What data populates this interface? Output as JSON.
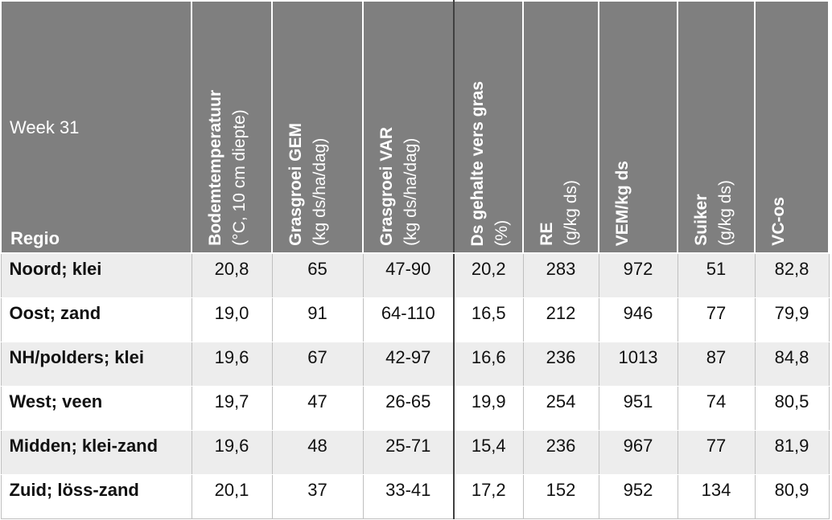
{
  "table": {
    "week_label": "Week 31",
    "region_header": "Regio",
    "columns": [
      {
        "bold": "Bodemtemperatuur",
        "unit": "(°C, 10 cm diepte)"
      },
      {
        "bold": "Grasgroei GEM",
        "unit": "(kg ds/ha/dag)"
      },
      {
        "bold": "Grasgroei VAR",
        "unit": "(kg ds/ha/dag)"
      },
      {
        "bold": "Ds gehalte vers gras",
        "unit": "(%)"
      },
      {
        "bold": "RE",
        "unit": "(g/kg ds)"
      },
      {
        "bold": "VEM/kg ds",
        "unit": ""
      },
      {
        "bold": "Suiker",
        "unit": "(g/kg ds)"
      },
      {
        "bold": "VC-os",
        "unit": ""
      }
    ],
    "rows": [
      {
        "region": "Noord; klei",
        "values": [
          "20,8",
          "65",
          "47-90",
          "20,2",
          "283",
          "972",
          "51",
          "82,8"
        ]
      },
      {
        "region": "Oost; zand",
        "values": [
          "19,0",
          "91",
          "64-110",
          "16,5",
          "212",
          "946",
          "77",
          "79,9"
        ]
      },
      {
        "region": "NH/polders; klei",
        "values": [
          "19,6",
          "67",
          "42-97",
          "16,6",
          "236",
          "1013",
          "87",
          "84,8"
        ]
      },
      {
        "region": "West; veen",
        "values": [
          "19,7",
          "47",
          "26-65",
          "19,9",
          "254",
          "951",
          "74",
          "80,5"
        ]
      },
      {
        "region": "Midden; klei-zand",
        "values": [
          "19,6",
          "48",
          "25-71",
          "15,4",
          "236",
          "967",
          "77",
          "81,9"
        ]
      },
      {
        "region": "Zuid; löss-zand",
        "values": [
          "20,1",
          "37",
          "33-41",
          "17,2",
          "152",
          "952",
          "134",
          "80,9"
        ]
      }
    ]
  },
  "colors": {
    "header_bg": "#7f7f7f",
    "row_alt_bg": "#ededed",
    "row_bg": "#ffffff",
    "separator": "#404040"
  }
}
